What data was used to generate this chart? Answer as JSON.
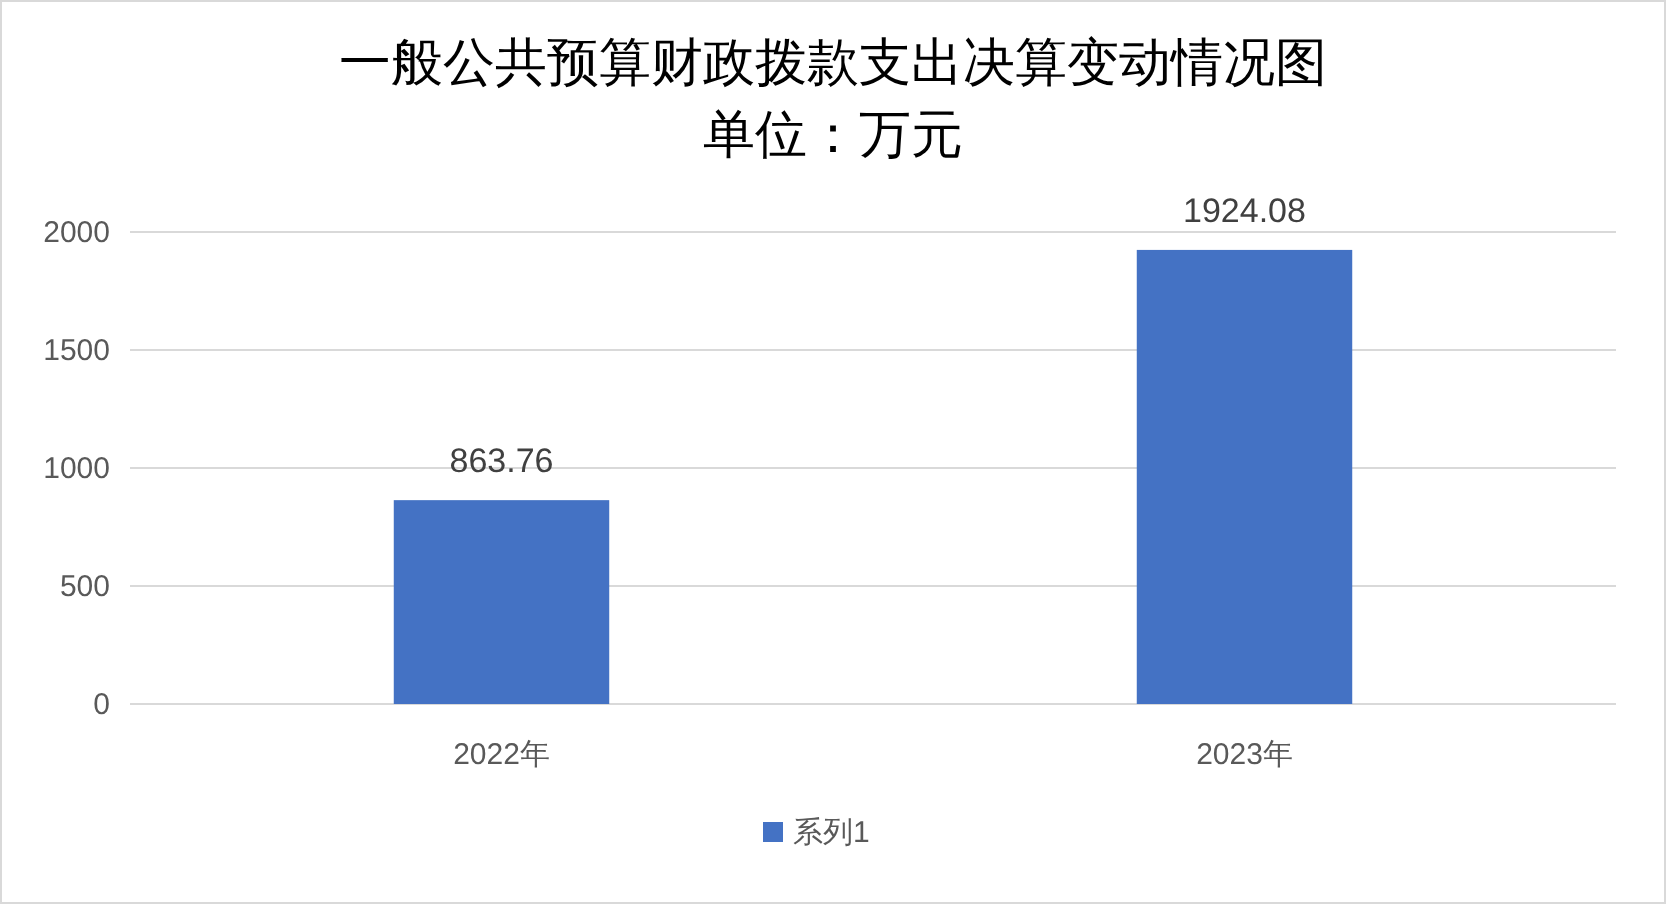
{
  "chart_data": {
    "type": "bar",
    "title": "一般公共预算财政拨款支出决算变动情况图",
    "subtitle": "单位：万元",
    "categories": [
      "2022年",
      "2023年"
    ],
    "series": [
      {
        "name": "系列1",
        "color": "#4472c4",
        "values": [
          863.76,
          1924.08
        ]
      }
    ],
    "ylim": [
      0,
      2000
    ],
    "yticks": [
      0,
      500,
      1000,
      1500,
      2000
    ],
    "grid": "y",
    "legend": "bottom",
    "data_labels": true
  }
}
